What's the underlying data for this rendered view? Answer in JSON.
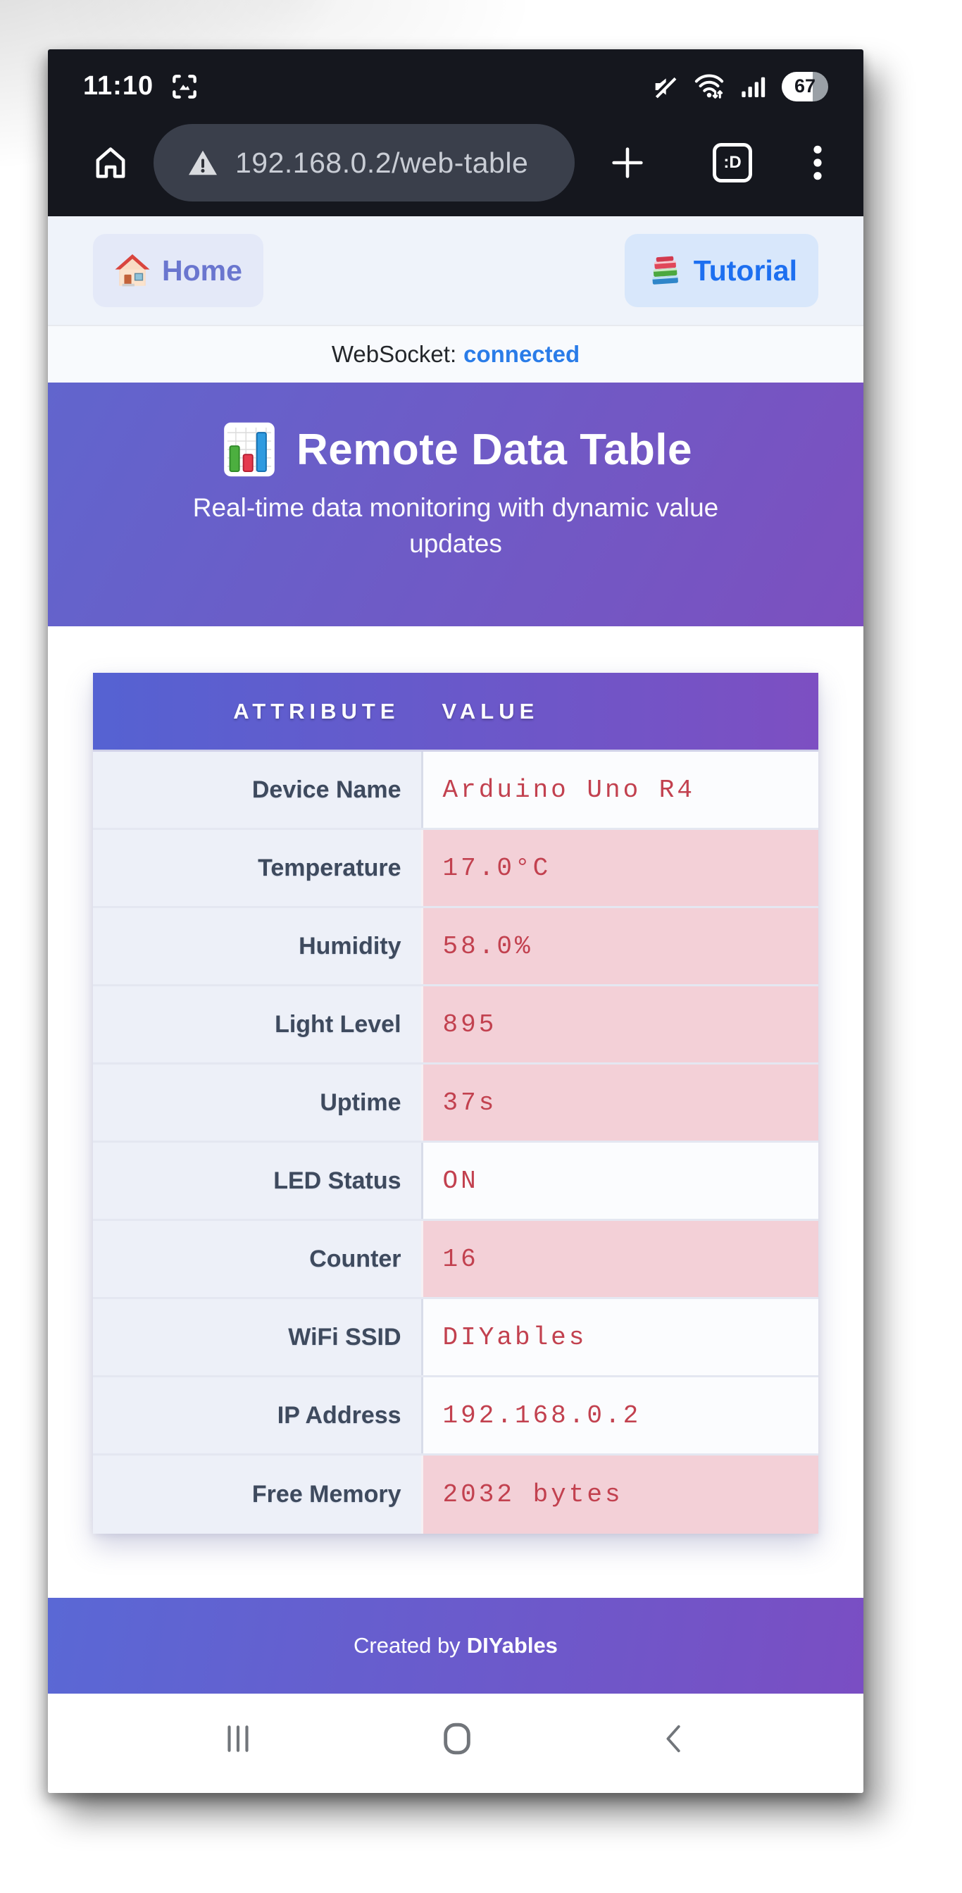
{
  "status_bar": {
    "time": "11:10",
    "battery_percent": "67"
  },
  "browser_bar": {
    "url": "192.168.0.2/web-table",
    "tab_badge": ":D"
  },
  "toolbar": {
    "home_label": "Home",
    "tutorial_label": "Tutorial"
  },
  "websocket_bar": {
    "label": "WebSocket:",
    "status": "connected"
  },
  "hero": {
    "title": "Remote Data Table",
    "subtitle": "Real-time data monitoring with dynamic value updates"
  },
  "data_table": {
    "headers": {
      "attribute": "ATTRIBUTE",
      "value": "VALUE"
    },
    "rows": [
      {
        "attribute": "Device Name",
        "value": "Arduino Uno R4",
        "highlight": false
      },
      {
        "attribute": "Temperature",
        "value": "17.0°C",
        "highlight": true
      },
      {
        "attribute": "Humidity",
        "value": "58.0%",
        "highlight": true
      },
      {
        "attribute": "Light Level",
        "value": "895",
        "highlight": true
      },
      {
        "attribute": "Uptime",
        "value": "37s",
        "highlight": true
      },
      {
        "attribute": "LED Status",
        "value": "ON",
        "highlight": false
      },
      {
        "attribute": "Counter",
        "value": "16",
        "highlight": true
      },
      {
        "attribute": "WiFi SSID",
        "value": "DIYables",
        "highlight": false
      },
      {
        "attribute": "IP Address",
        "value": "192.168.0.2",
        "highlight": false
      },
      {
        "attribute": "Free Memory",
        "value": "2032 bytes",
        "highlight": true
      }
    ]
  },
  "footer": {
    "prefix": "Created by",
    "brand": "DIYables"
  },
  "colors": {
    "hero_gradient_start": "#6165cd",
    "hero_gradient_end": "#7c50bf",
    "table_header_start": "#5562d2",
    "table_header_end": "#7d4fc2",
    "value_text": "#c2414f",
    "highlight_row_bg": "#f3d0d7",
    "connected_status": "#2a7ce8",
    "home_button_text": "#6a76cf",
    "tutorial_button_text": "#1d6ff0"
  }
}
